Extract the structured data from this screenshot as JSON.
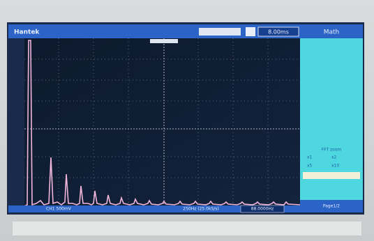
{
  "top_bar": {
    "brand": "Hantek",
    "timebase": "8.00ms"
  },
  "side_panel": {
    "title": "Math",
    "menu_title": "FFT zoom",
    "options": [
      "x1",
      "x2",
      "x5",
      "x10"
    ],
    "page": "Page1/2"
  },
  "bottom_bar": {
    "channel": "CH1 500mV",
    "scale": "250Hz (25.0kS/s)",
    "frequency": "88.0000Hz"
  }
}
